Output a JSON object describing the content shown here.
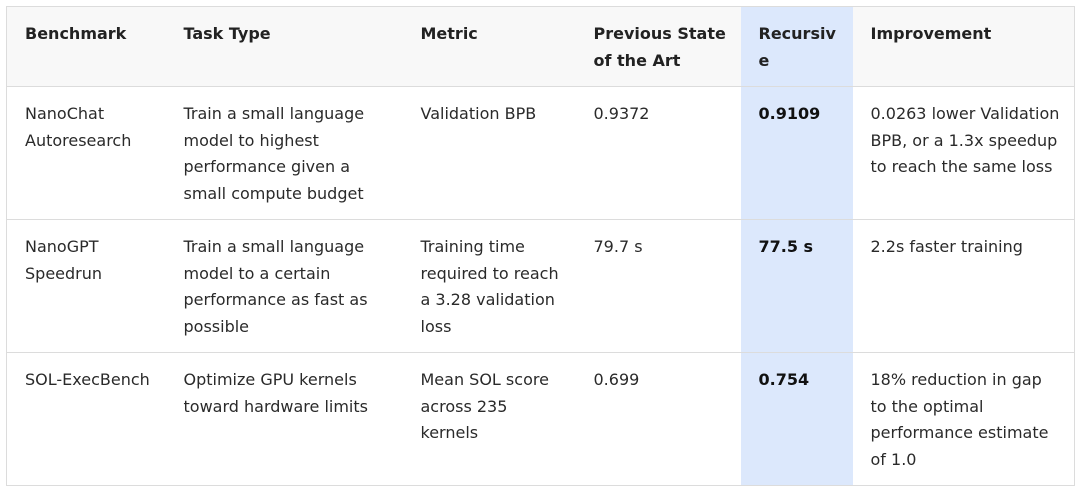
{
  "table": {
    "header": [
      "Benchmark",
      "Task Type",
      "Metric",
      "Previous State of the Art",
      "Recursive",
      "Improvement"
    ],
    "rows": [
      [
        "NanoChat Autoresearch",
        "Train a small language model to highest performance given a small compute budget",
        "Validation BPB",
        "0.9372",
        "0.9109",
        "0.0263 lower Validation BPB, or a 1.3x speedup to reach the same loss"
      ],
      [
        "NanoGPT Speedrun",
        "Train a small language model to a certain performance as fast as possible",
        "Training time required to reach a 3.28 validation loss",
        "79.7 s",
        "77.5 s",
        "2.2s faster training"
      ],
      [
        "SOL-ExecBench",
        "Optimize GPU kernels toward hardware limits",
        "Mean SOL score across 235 kernels",
        "0.699",
        "0.754",
        "18% reduction in gap to the optimal performance estimate of 1.0"
      ]
    ]
  }
}
